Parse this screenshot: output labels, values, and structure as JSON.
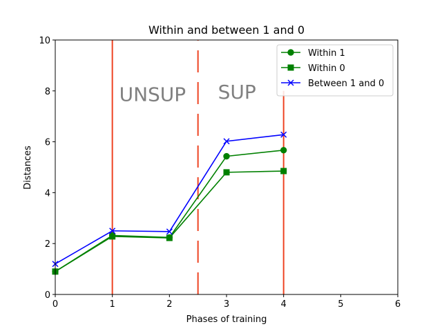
{
  "chart_data": {
    "type": "line",
    "title": "Within and between 1 and 0",
    "xlabel": "Phases of training",
    "ylabel": "Distances",
    "xlim": [
      0,
      6
    ],
    "ylim": [
      0,
      10
    ],
    "xticks": [
      0,
      1,
      2,
      3,
      4,
      5,
      6
    ],
    "yticks": [
      0,
      2,
      4,
      6,
      8,
      10
    ],
    "grid": false,
    "legend_position": "top-right",
    "series": [
      {
        "name": "Within 1",
        "color": "#008000",
        "marker": "circle",
        "x": [
          0,
          1,
          2,
          3,
          4
        ],
        "y": [
          0.9,
          2.32,
          2.24,
          5.43,
          5.67
        ]
      },
      {
        "name": "Within 0",
        "color": "#008000",
        "marker": "square",
        "x": [
          0,
          1,
          2,
          3,
          4
        ],
        "y": [
          0.9,
          2.28,
          2.22,
          4.8,
          4.85
        ]
      },
      {
        "name": "Between 1 and 0",
        "color": "#0000ff",
        "marker": "x",
        "x": [
          0,
          1,
          2,
          3,
          4
        ],
        "y": [
          1.2,
          2.5,
          2.47,
          6.02,
          6.28
        ]
      }
    ],
    "vlines": [
      {
        "x": 1,
        "style": "solid",
        "color": "#ee4422",
        "y_range": [
          0,
          10
        ]
      },
      {
        "x": 2.5,
        "style": "dashed",
        "color": "#ee4422",
        "y_range": [
          0,
          10
        ]
      },
      {
        "x": 4,
        "style": "solid",
        "color": "#ee4422",
        "y_range": [
          0,
          8
        ]
      }
    ],
    "annotations": [
      {
        "text": "UNSUP",
        "x": 1.12,
        "y": 7.6
      },
      {
        "text": "SUP",
        "x": 2.85,
        "y": 7.7
      }
    ]
  }
}
